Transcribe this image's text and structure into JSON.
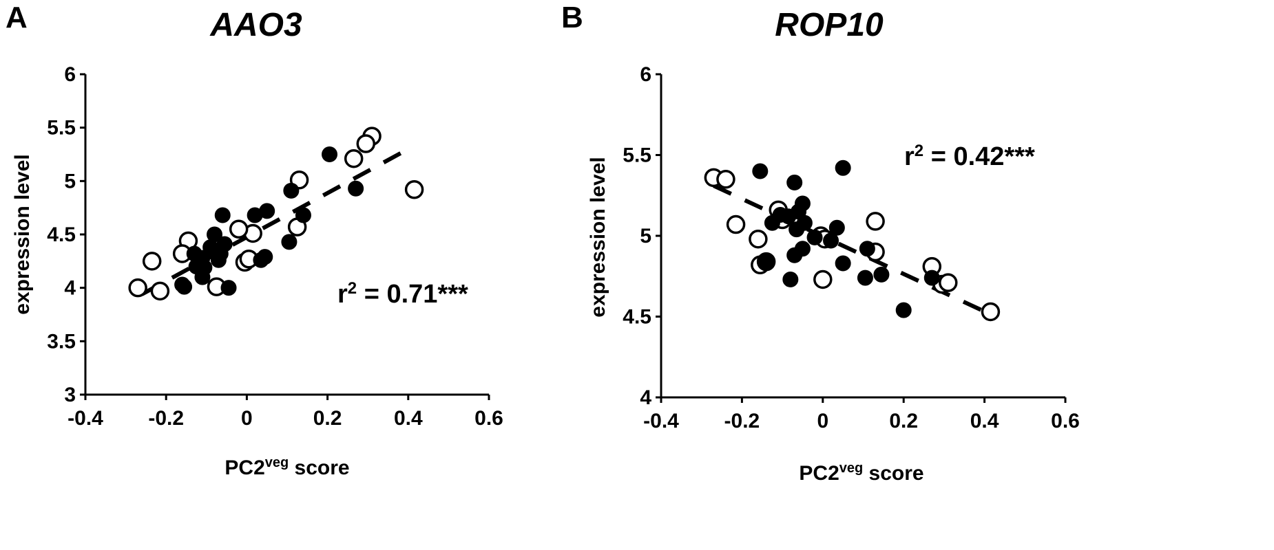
{
  "chart_data": [
    {
      "type": "scatter",
      "panel_letter": "A",
      "title": "AAO3",
      "xlabel": "PC2",
      "xlabel_sup": "veg",
      "xlabel_suffix": " score",
      "ylabel": "expression level",
      "xlim": [
        -0.4,
        0.6
      ],
      "ylim": [
        3,
        6
      ],
      "x_ticks": [
        -0.4,
        -0.2,
        0,
        0.2,
        0.4,
        0.6
      ],
      "x_tick_labels": [
        "-0.4",
        "-0.2",
        "0",
        "0.2",
        "0.4",
        "0.6"
      ],
      "y_ticks": [
        3,
        3.5,
        4,
        4.5,
        5,
        5.5,
        6
      ],
      "y_tick_labels": [
        "3",
        "3.5",
        "4",
        "4.5",
        "5",
        "5.5",
        "6"
      ],
      "annotation": {
        "prefix": "r",
        "sup": "2",
        "suffix": " = 0.71***"
      },
      "trendline": {
        "style": "dashed",
        "x": [
          -0.26,
          0.41
        ],
        "y": [
          3.94,
          5.32
        ]
      },
      "series": [
        {
          "marker": "filled",
          "points": [
            [
              0.205,
              5.25
            ],
            [
              0.27,
              4.93
            ],
            [
              0.11,
              4.91
            ],
            [
              0.105,
              4.43
            ],
            [
              0.14,
              4.68
            ],
            [
              0.05,
              4.72
            ],
            [
              0.02,
              4.68
            ],
            [
              0.035,
              4.26
            ],
            [
              0.045,
              4.29
            ],
            [
              -0.055,
              4.41
            ],
            [
              -0.065,
              4.32
            ],
            [
              -0.06,
              4.68
            ],
            [
              -0.07,
              4.26
            ],
            [
              -0.08,
              4.5
            ],
            [
              -0.09,
              4.38
            ],
            [
              -0.105,
              4.19
            ],
            [
              -0.11,
              4.28
            ],
            [
              -0.125,
              4.2
            ],
            [
              -0.13,
              4.32
            ],
            [
              -0.11,
              4.1
            ],
            [
              -0.16,
              4.03
            ],
            [
              -0.155,
              4.01
            ],
            [
              -0.045,
              4.0
            ]
          ]
        },
        {
          "marker": "open",
          "points": [
            [
              0.31,
              5.42
            ],
            [
              0.295,
              5.35
            ],
            [
              0.265,
              5.21
            ],
            [
              0.415,
              4.92
            ],
            [
              0.13,
              5.01
            ],
            [
              0.125,
              4.57
            ],
            [
              0.015,
              4.51
            ],
            [
              -0.02,
              4.55
            ],
            [
              -0.005,
              4.24
            ],
            [
              0.005,
              4.27
            ],
            [
              -0.145,
              4.44
            ],
            [
              -0.16,
              4.32
            ],
            [
              -0.235,
              4.25
            ],
            [
              -0.27,
              4.0
            ],
            [
              -0.215,
              3.97
            ],
            [
              -0.075,
              4.01
            ]
          ]
        }
      ]
    },
    {
      "type": "scatter",
      "panel_letter": "B",
      "title": "ROP10",
      "xlabel": "PC2",
      "xlabel_sup": "veg",
      "xlabel_suffix": " score",
      "ylabel": "expression level",
      "xlim": [
        -0.4,
        0.6
      ],
      "ylim": [
        4,
        6
      ],
      "x_ticks": [
        -0.4,
        -0.2,
        0,
        0.2,
        0.4,
        0.6
      ],
      "x_tick_labels": [
        "-0.4",
        "-0.2",
        "0",
        "0.2",
        "0.4",
        "0.6"
      ],
      "y_ticks": [
        4,
        4.5,
        5,
        5.5,
        6
      ],
      "y_tick_labels": [
        "4",
        "4.5",
        "5",
        "5.5",
        "6"
      ],
      "annotation": {
        "prefix": "r",
        "sup": "2",
        "suffix": " = 0.42***"
      },
      "trendline": {
        "style": "dashed",
        "x": [
          -0.27,
          0.41
        ],
        "y": [
          5.31,
          4.52
        ]
      },
      "series": [
        {
          "marker": "filled",
          "points": [
            [
              -0.155,
              5.4
            ],
            [
              0.05,
              5.42
            ],
            [
              -0.07,
              5.33
            ],
            [
              -0.05,
              5.2
            ],
            [
              -0.045,
              5.08
            ],
            [
              -0.06,
              5.15
            ],
            [
              -0.085,
              5.12
            ],
            [
              -0.105,
              5.13
            ],
            [
              -0.125,
              5.08
            ],
            [
              -0.065,
              5.04
            ],
            [
              0.035,
              5.05
            ],
            [
              0.02,
              4.97
            ],
            [
              -0.02,
              4.99
            ],
            [
              0.11,
              4.92
            ],
            [
              0.05,
              4.83
            ],
            [
              -0.05,
              4.92
            ],
            [
              -0.07,
              4.88
            ],
            [
              -0.14,
              4.84
            ],
            [
              -0.08,
              4.73
            ],
            [
              0.105,
              4.74
            ],
            [
              0.145,
              4.76
            ],
            [
              0.27,
              4.74
            ],
            [
              0.2,
              4.54
            ]
          ]
        },
        {
          "marker": "open",
          "points": [
            [
              -0.27,
              5.36
            ],
            [
              -0.24,
              5.35
            ],
            [
              -0.215,
              5.07
            ],
            [
              -0.11,
              5.16
            ],
            [
              -0.1,
              5.1
            ],
            [
              -0.16,
              4.98
            ],
            [
              -0.155,
              4.82
            ],
            [
              -0.14,
              4.84
            ],
            [
              -0.005,
              5.0
            ],
            [
              0.005,
              4.98
            ],
            [
              0.0,
              4.73
            ],
            [
              0.13,
              5.09
            ],
            [
              0.13,
              4.9
            ],
            [
              0.27,
              4.81
            ],
            [
              0.295,
              4.7
            ],
            [
              0.31,
              4.71
            ],
            [
              0.415,
              4.53
            ]
          ]
        }
      ]
    }
  ]
}
